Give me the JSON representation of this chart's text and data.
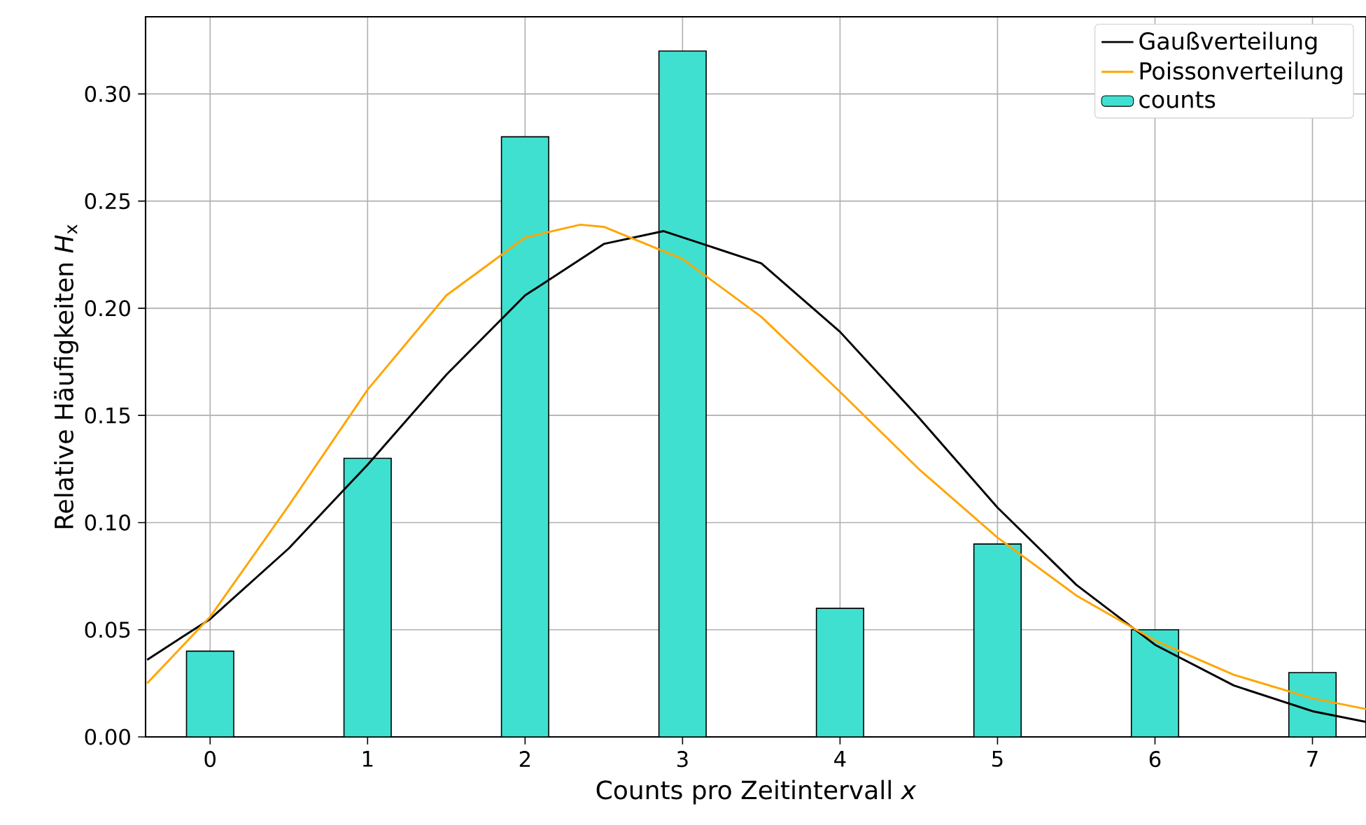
{
  "chart_data": {
    "type": "bar",
    "xlabel": "Counts pro Zeitintervall *x*",
    "ylabel": "Relative Häufigkeiten *H*$_{x}$",
    "x": [
      0,
      1,
      2,
      3,
      4,
      5,
      6,
      7
    ],
    "series": [
      {
        "name": "Gaußverteilung",
        "type": "line",
        "color": "#000000",
        "x": [
          -0.4,
          0,
          0.5,
          1,
          1.5,
          2,
          2.5,
          2.88,
          3.5,
          4,
          4.5,
          5,
          5.5,
          6,
          6.5,
          7,
          7.34
        ],
        "values": [
          0.036,
          0.055,
          0.088,
          0.127,
          0.169,
          0.206,
          0.23,
          0.236,
          0.221,
          0.189,
          0.149,
          0.107,
          0.071,
          0.043,
          0.024,
          0.012,
          0.007
        ]
      },
      {
        "name": "Poissonverteilung",
        "type": "line",
        "color": "#ffa500",
        "x": [
          -0.4,
          0,
          0.5,
          1,
          1.5,
          2,
          2.35,
          2.5,
          3,
          3.5,
          4,
          4.5,
          5,
          5.5,
          6,
          6.5,
          7,
          7.34
        ],
        "values": [
          0.025,
          0.056,
          0.108,
          0.162,
          0.206,
          0.233,
          0.239,
          0.238,
          0.223,
          0.196,
          0.161,
          0.125,
          0.093,
          0.066,
          0.045,
          0.029,
          0.018,
          0.013
        ]
      },
      {
        "name": "counts",
        "color": "#40e0d0",
        "values": [
          0.04,
          0.13,
          0.28,
          0.32,
          0.06,
          0.09,
          0.05,
          0.03
        ]
      }
    ],
    "xlim": [
      -0.41,
      7.34
    ],
    "ylim": [
      0,
      0.336
    ],
    "xticks": [
      0,
      1,
      2,
      3,
      4,
      5,
      6,
      7
    ],
    "yticks": [
      {
        "value": 0,
        "label": "0.00"
      },
      {
        "value": 0.05,
        "label": "0.05"
      },
      {
        "value": 0.1,
        "label": "0.10"
      },
      {
        "value": 0.15,
        "label": "0.15"
      },
      {
        "value": 0.2,
        "label": "0.20"
      },
      {
        "value": 0.25,
        "label": "0.25"
      },
      {
        "value": 0.3,
        "label": "0.30"
      }
    ],
    "grid": true,
    "legend": "top right"
  }
}
